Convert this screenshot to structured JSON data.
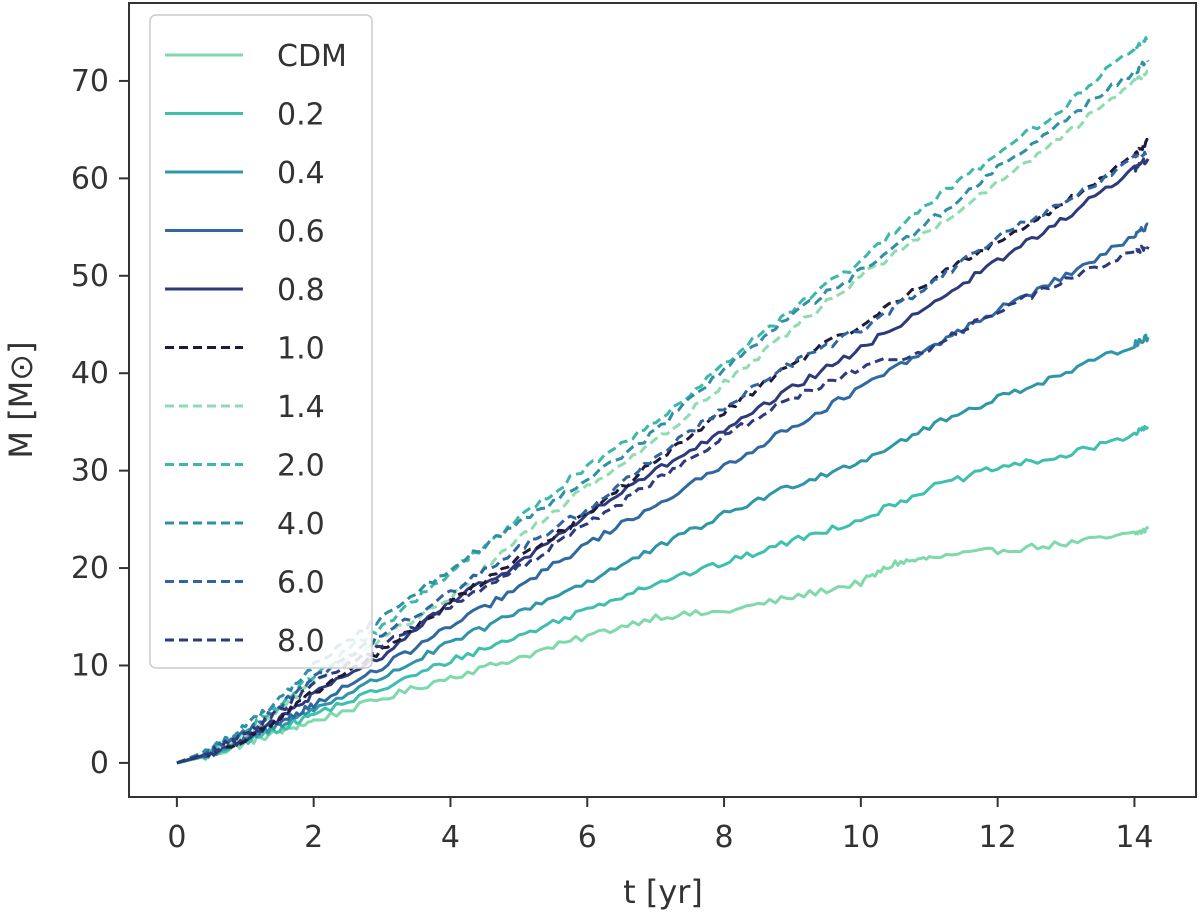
{
  "chart_data": {
    "type": "line",
    "title": "",
    "xlabel": "t [yr]",
    "ylabel": "M [M⊙]",
    "xlim": [
      -0.7,
      14.9
    ],
    "ylim": [
      -3.5,
      78
    ],
    "xticks": [
      0,
      2,
      4,
      6,
      8,
      10,
      12,
      14
    ],
    "yticks": [
      0,
      10,
      20,
      30,
      40,
      50,
      60,
      70
    ],
    "grid": false,
    "legend_position": "top-left",
    "series": [
      {
        "name": "CDM",
        "style": "solid",
        "color": "#7fd9aa",
        "x": [
          0,
          0.5,
          1,
          1.5,
          2,
          3,
          4,
          5,
          6,
          7,
          8,
          9,
          10,
          10.5,
          11,
          12,
          13,
          14,
          14.2
        ],
        "y": [
          0,
          0.8,
          2.0,
          3.2,
          4.3,
          6.6,
          8.8,
          10.8,
          13.0,
          15.0,
          15.5,
          17.0,
          18.5,
          20.5,
          21.0,
          21.8,
          22.5,
          23.5,
          24.0
        ]
      },
      {
        "name": "0.2",
        "style": "solid",
        "color": "#3fbfae",
        "x": [
          0,
          0.5,
          1,
          1.5,
          2,
          3,
          4,
          5,
          6,
          7,
          8,
          9,
          10,
          11,
          12,
          13,
          14,
          14.2
        ],
        "y": [
          0,
          0.8,
          2.2,
          3.5,
          5.0,
          7.6,
          10.5,
          13.0,
          15.8,
          18.5,
          20.5,
          22.8,
          25.0,
          28.2,
          30.3,
          31.5,
          33.8,
          34.5
        ]
      },
      {
        "name": "0.4",
        "style": "solid",
        "color": "#2e96a8",
        "x": [
          0,
          0.5,
          1,
          1.5,
          2,
          3,
          4,
          5,
          6,
          7,
          8,
          9,
          10,
          11,
          12,
          13,
          14,
          14.2
        ],
        "y": [
          0,
          0.9,
          2.4,
          3.9,
          5.5,
          8.8,
          12.3,
          15.5,
          18.6,
          22.0,
          25.5,
          28.5,
          31.0,
          34.5,
          37.5,
          40.0,
          43.0,
          43.7
        ]
      },
      {
        "name": "0.6",
        "style": "solid",
        "color": "#3069a0",
        "x": [
          0,
          0.5,
          1,
          1.5,
          2,
          3,
          4,
          5,
          6,
          7,
          8,
          9,
          10,
          11,
          12,
          13,
          14,
          14.2
        ],
        "y": [
          0,
          1.0,
          2.6,
          4.2,
          6.0,
          9.8,
          14.0,
          18.0,
          22.5,
          26.5,
          30.5,
          34.5,
          38.5,
          42.5,
          46.5,
          50.0,
          54.0,
          55.3
        ]
      },
      {
        "name": "0.8",
        "style": "solid",
        "color": "#2f3a7a",
        "x": [
          0,
          0.5,
          1,
          1.5,
          2,
          3,
          4,
          5,
          6,
          7,
          8,
          9,
          10,
          11,
          12,
          13,
          14,
          14.2
        ],
        "y": [
          0,
          1.0,
          2.5,
          4.5,
          7.0,
          11.0,
          16.5,
          20.5,
          25.5,
          30.0,
          34.0,
          38.5,
          42.5,
          47.0,
          51.5,
          56.0,
          61.0,
          62.0
        ]
      },
      {
        "name": "1.0",
        "style": "dashed",
        "color": "#201a3a",
        "x": [
          0,
          0.5,
          1,
          1.5,
          2,
          3,
          4,
          5,
          6,
          7,
          8,
          9,
          10,
          11,
          12,
          13,
          14,
          14.2
        ],
        "y": [
          0,
          1.0,
          2.5,
          4.6,
          7.2,
          11.5,
          16.5,
          21.0,
          25.5,
          31.0,
          36.0,
          41.0,
          45.0,
          49.5,
          53.5,
          57.5,
          62.5,
          63.8
        ]
      },
      {
        "name": "1.4",
        "style": "dashed",
        "color": "#8fdcb0",
        "x": [
          0,
          0.5,
          1,
          1.5,
          2,
          3,
          4,
          5,
          6,
          7,
          8,
          9,
          10,
          11,
          12,
          13,
          14,
          14.2
        ],
        "y": [
          0,
          1.2,
          3.0,
          5.5,
          8.5,
          12.8,
          17.0,
          23.0,
          28.5,
          33.0,
          39.0,
          44.5,
          50.0,
          54.5,
          59.5,
          64.5,
          70.0,
          71.0
        ]
      },
      {
        "name": "2.0",
        "style": "dashed",
        "color": "#3cb8a8",
        "x": [
          0,
          0.5,
          1,
          1.5,
          2,
          3,
          4,
          5,
          6,
          7,
          8,
          9,
          10,
          11,
          12,
          13,
          14,
          14.2
        ],
        "y": [
          0,
          1.3,
          3.3,
          6.0,
          9.0,
          14.0,
          19.5,
          25.0,
          30.5,
          35.0,
          41.0,
          46.5,
          51.5,
          57.5,
          62.5,
          67.5,
          73.5,
          74.3
        ]
      },
      {
        "name": "4.0",
        "style": "dashed",
        "color": "#2e8fa5",
        "x": [
          0,
          0.5,
          1,
          1.5,
          2,
          3,
          4,
          5,
          6,
          7,
          8,
          9,
          10,
          11,
          12,
          13,
          14,
          14.2
        ],
        "y": [
          0,
          1.4,
          3.8,
          6.5,
          10.0,
          15.0,
          20.0,
          24.5,
          29.0,
          34.0,
          40.5,
          46.0,
          50.5,
          55.5,
          61.0,
          66.0,
          71.0,
          72.0
        ]
      },
      {
        "name": "6.0",
        "style": "dashed",
        "color": "#3066a0",
        "x": [
          0,
          0.5,
          1,
          1.5,
          2,
          3,
          4,
          5,
          6,
          7,
          8,
          9,
          10,
          11,
          12,
          13,
          14,
          14.2
        ],
        "y": [
          0,
          1.2,
          3.2,
          5.8,
          8.8,
          13.0,
          17.5,
          22.0,
          26.0,
          31.5,
          36.5,
          41.0,
          44.5,
          49.0,
          54.0,
          57.5,
          62.0,
          62.8
        ]
      },
      {
        "name": "8.0",
        "style": "dashed",
        "color": "#2d3a7c",
        "x": [
          0,
          0.5,
          1,
          1.5,
          2,
          3,
          4,
          5,
          6,
          7,
          8,
          9,
          10,
          11,
          12,
          13,
          14,
          14.2
        ],
        "y": [
          0,
          1.1,
          3.0,
          5.3,
          8.2,
          12.0,
          16.0,
          20.0,
          24.5,
          29.0,
          33.5,
          37.5,
          40.5,
          42.5,
          46.5,
          49.5,
          52.5,
          53.0
        ]
      }
    ]
  }
}
